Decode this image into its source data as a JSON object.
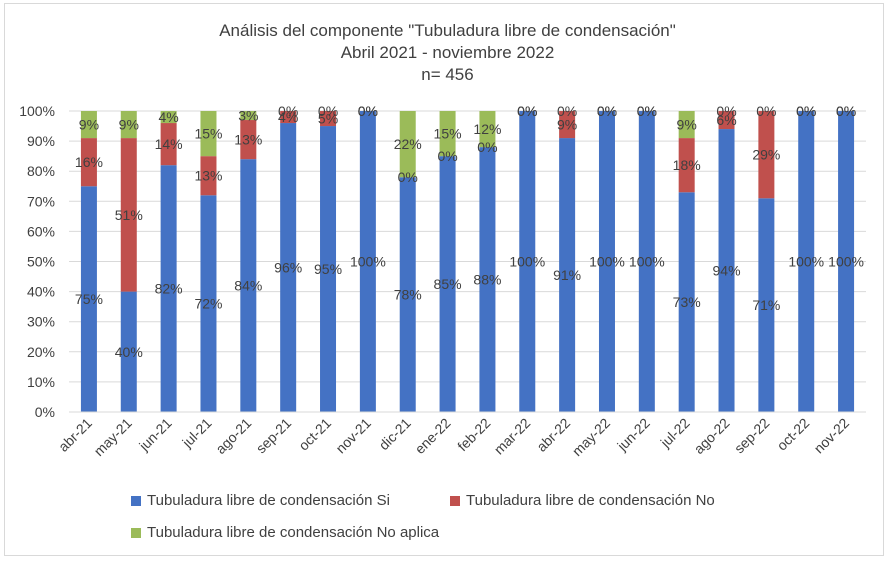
{
  "chart_data": {
    "type": "bar",
    "stacked": true,
    "title_lines": [
      "Análisis del componente \"Tubuladura libre de condensación\"",
      "Abril 2021 - noviembre 2022",
      "n= 456"
    ],
    "categories": [
      "abr-21",
      "may-21",
      "jun-21",
      "jul-21",
      "ago-21",
      "sep-21",
      "oct-21",
      "nov-21",
      "dic-21",
      "ene-22",
      "feb-22",
      "mar-22",
      "abr-22",
      "may-22",
      "jun-22",
      "jul-22",
      "ago-22",
      "sep-22",
      "oct-22",
      "nov-22"
    ],
    "ylim": [
      0,
      100
    ],
    "yticks": [
      "0%",
      "10%",
      "20%",
      "30%",
      "40%",
      "50%",
      "60%",
      "70%",
      "80%",
      "90%",
      "100%"
    ],
    "grid": true,
    "legend_position": "bottom",
    "series": [
      {
        "name": "Tubuladura libre de condensación Si",
        "color": "#4472c4",
        "values": [
          75,
          40,
          82,
          72,
          84,
          96,
          95,
          100,
          78,
          85,
          88,
          100,
          91,
          100,
          100,
          73,
          94,
          71,
          100,
          100
        ],
        "labels": [
          "75%",
          "40%",
          "82%",
          "72%",
          "84%",
          "96%",
          "95%",
          "100%",
          "78%",
          "85%",
          "88%",
          "100%",
          "91%",
          "100%",
          "100%",
          "73%",
          "94%",
          "71%",
          "100%",
          "100%"
        ]
      },
      {
        "name": "Tubuladura libre de condensación No",
        "color": "#c0504d",
        "values": [
          16,
          51,
          14,
          13,
          13,
          4,
          5,
          0,
          0,
          0,
          0,
          0,
          9,
          0,
          0,
          18,
          6,
          29,
          0,
          0
        ],
        "labels": [
          "16%",
          "51%",
          "14%",
          "13%",
          "13%",
          "4%",
          "5%",
          "0%",
          "0%",
          "0%",
          "0%",
          "0%",
          "9%",
          "0%",
          "0%",
          "18%",
          "6%",
          "29%",
          "0%",
          "0%"
        ]
      },
      {
        "name": "Tubuladura libre de condensación No aplica",
        "color": "#9bbb59",
        "values": [
          9,
          9,
          4,
          15,
          3,
          0,
          0,
          0,
          22,
          15,
          12,
          0,
          0,
          0,
          0,
          9,
          0,
          0,
          0,
          0
        ],
        "labels": [
          "9%",
          "9%",
          "4%",
          "15%",
          "3%",
          "0%",
          "0%",
          "0%",
          "22%",
          "15%",
          "12%",
          "0%",
          "0%",
          "0%",
          "0%",
          "9%",
          "0%",
          "0%",
          "0%",
          "0%"
        ]
      }
    ]
  }
}
